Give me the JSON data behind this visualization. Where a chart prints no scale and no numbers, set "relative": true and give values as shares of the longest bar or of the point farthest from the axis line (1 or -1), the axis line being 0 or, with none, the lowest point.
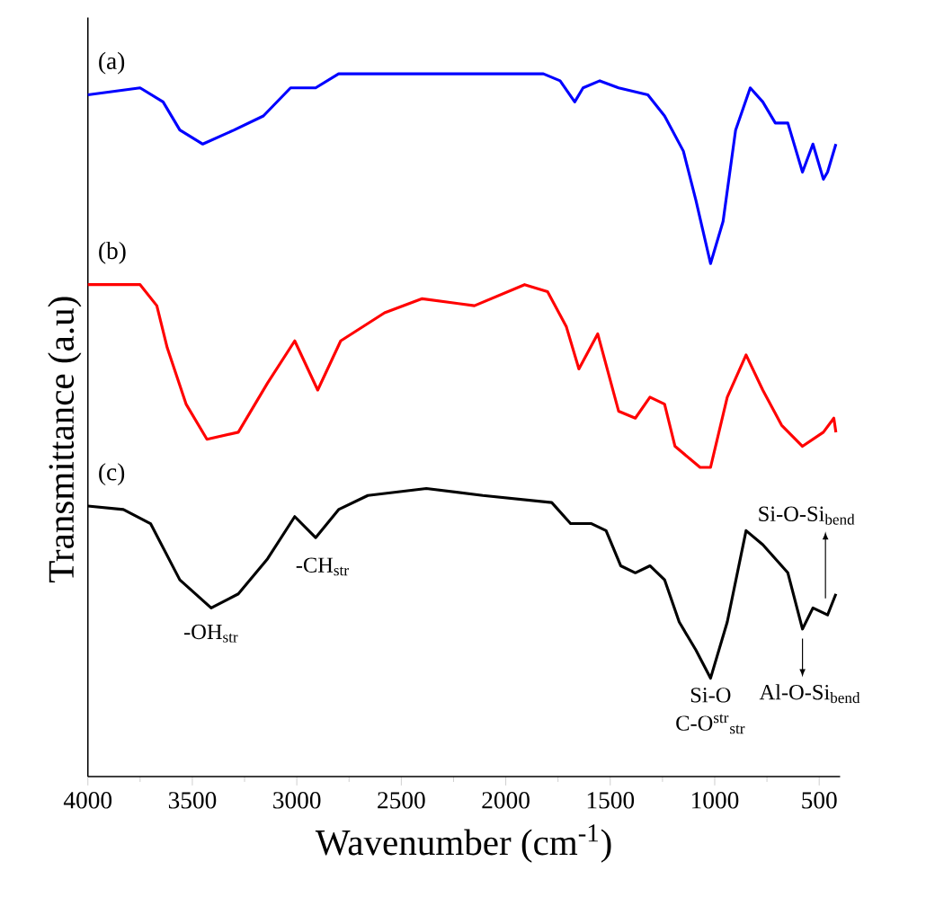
{
  "chart_data": {
    "type": "line",
    "relative": true,
    "xlabel": "Wavenumber (cm$^{-1}$)",
    "ylabel": "Transmittance (a.u)",
    "xlim": [
      4000,
      400
    ],
    "xticks": [
      4000,
      3500,
      3000,
      2500,
      2000,
      1500,
      1000,
      500
    ],
    "series": [
      {
        "name": "(a)",
        "color": "#0000ff",
        "x": [
          4000,
          3750,
          3640,
          3560,
          3450,
          3300,
          3160,
          3030,
          2910,
          2800,
          2380,
          1820,
          1740,
          1670,
          1630,
          1550,
          1460,
          1320,
          1240,
          1150,
          1090,
          1020,
          960,
          900,
          830,
          770,
          710,
          650,
          580,
          530,
          480,
          460,
          420
        ],
        "values": [
          0.97,
          0.98,
          0.96,
          0.92,
          0.9,
          0.92,
          0.94,
          0.98,
          0.98,
          1.0,
          1.0,
          1.0,
          0.99,
          0.96,
          0.98,
          0.99,
          0.98,
          0.97,
          0.94,
          0.89,
          0.82,
          0.73,
          0.79,
          0.92,
          0.98,
          0.96,
          0.93,
          0.93,
          0.86,
          0.9,
          0.85,
          0.86,
          0.9
        ]
      },
      {
        "name": "(b)",
        "color": "#ff0000",
        "x": [
          4000,
          3750,
          3670,
          3620,
          3530,
          3430,
          3280,
          3140,
          3010,
          2900,
          2790,
          2580,
          2400,
          2150,
          1910,
          1800,
          1710,
          1650,
          1560,
          1460,
          1380,
          1310,
          1240,
          1190,
          1070,
          1020,
          940,
          850,
          770,
          680,
          580,
          480,
          430,
          420
        ],
        "values": [
          0.7,
          0.7,
          0.67,
          0.61,
          0.53,
          0.48,
          0.49,
          0.56,
          0.62,
          0.55,
          0.62,
          0.66,
          0.68,
          0.67,
          0.7,
          0.69,
          0.64,
          0.58,
          0.63,
          0.52,
          0.51,
          0.54,
          0.53,
          0.47,
          0.44,
          0.44,
          0.54,
          0.6,
          0.55,
          0.5,
          0.47,
          0.49,
          0.51,
          0.49
        ]
      },
      {
        "name": "(c)",
        "color": "#000000",
        "x": [
          4000,
          3830,
          3700,
          3560,
          3410,
          3280,
          3140,
          3010,
          2910,
          2800,
          2660,
          2380,
          2110,
          1780,
          1690,
          1590,
          1520,
          1450,
          1380,
          1310,
          1240,
          1170,
          1090,
          1020,
          940,
          850,
          770,
          650,
          580,
          530,
          460,
          420
        ],
        "values": [
          0.385,
          0.38,
          0.36,
          0.28,
          0.24,
          0.26,
          0.31,
          0.37,
          0.34,
          0.38,
          0.4,
          0.41,
          0.4,
          0.39,
          0.36,
          0.36,
          0.35,
          0.3,
          0.29,
          0.3,
          0.28,
          0.22,
          0.18,
          0.14,
          0.22,
          0.35,
          0.33,
          0.29,
          0.21,
          0.24,
          0.23,
          0.26
        ]
      }
    ],
    "annotations": [
      {
        "text": "-OH$_{str}$",
        "x": 3410,
        "y": 0.24
      },
      {
        "text": "-CH$_{str}$",
        "x": 2910,
        "y": 0.34
      },
      {
        "text": "Si-O",
        "x": 1020,
        "y": 0.14
      },
      {
        "text": "C-O$^{str}$$_{str}$",
        "x": 1020,
        "y": 0.14
      },
      {
        "text": "Si-O-Si$_{bend}$",
        "x": 470,
        "y": 0.24
      },
      {
        "text": "Al-O-Si$_{bend}$",
        "x": 580,
        "y": 0.21
      }
    ]
  }
}
